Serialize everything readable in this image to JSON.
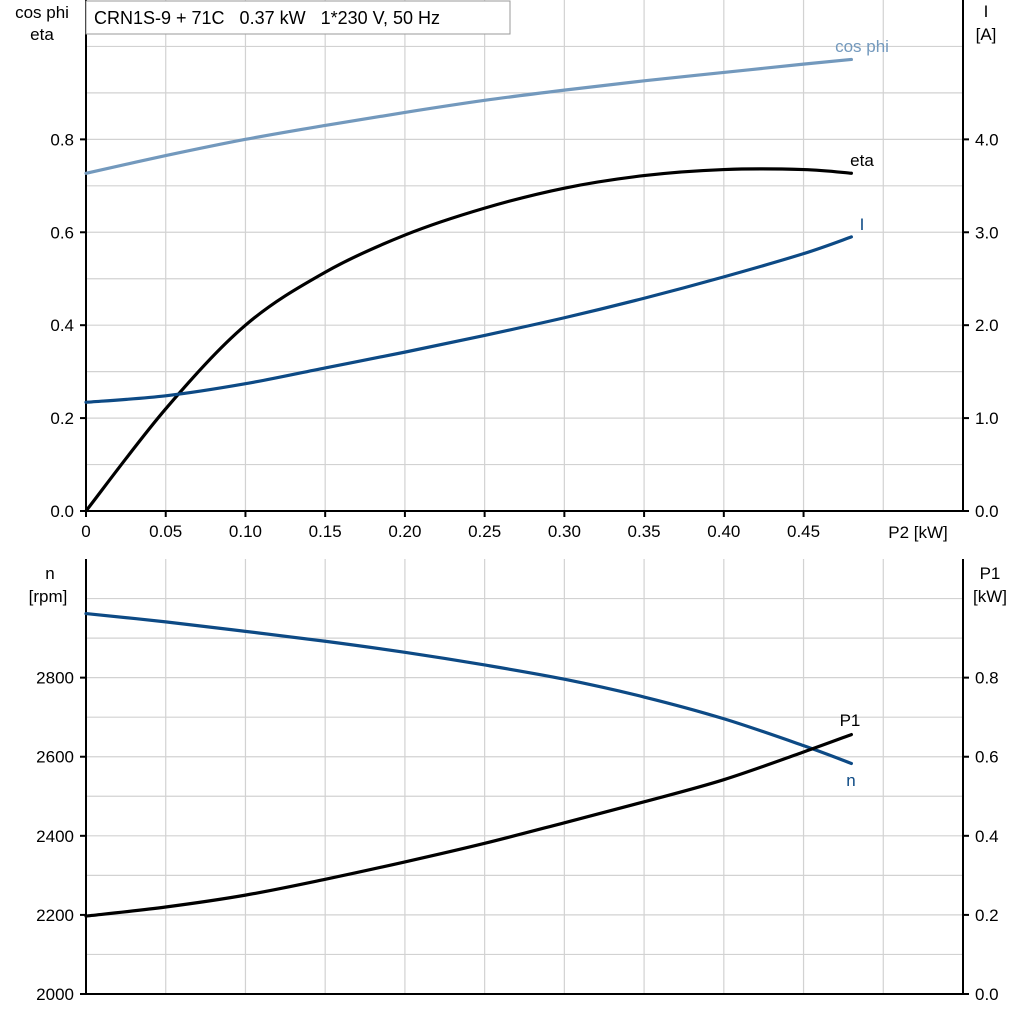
{
  "chart_data": [
    {
      "type": "line",
      "title": "CRN1S-9 + 71C   0.37 kW   1*230 V, 50 Hz",
      "xlabel": "P2 [kW]",
      "ylabel_left": [
        "cos phi",
        "eta"
      ],
      "ylabel_right": [
        "I",
        "[A]"
      ],
      "xlim": [
        0,
        0.55
      ],
      "ylim_left": [
        0,
        1.1
      ],
      "ylim_right": [
        0,
        5.5
      ],
      "x_ticks": [
        "0",
        "0.05",
        "0.10",
        "0.15",
        "0.20",
        "0.25",
        "0.30",
        "0.35",
        "0.40",
        "0.45"
      ],
      "y_left_ticks": [
        "0.0",
        "0.2",
        "0.4",
        "0.6",
        "0.8"
      ],
      "y_right_ticks": [
        "0.0",
        "1.0",
        "2.0",
        "3.0",
        "4.0"
      ],
      "grid": true,
      "x": [
        0,
        0.05,
        0.1,
        0.15,
        0.2,
        0.25,
        0.3,
        0.35,
        0.4,
        0.45,
        0.48
      ],
      "series": [
        {
          "name": "cos phi",
          "axis": "left",
          "color": "#7399bd",
          "values": [
            0.727,
            0.765,
            0.8,
            0.83,
            0.858,
            0.884,
            0.906,
            0.926,
            0.944,
            0.962,
            0.972
          ]
        },
        {
          "name": "eta",
          "axis": "left",
          "color": "#000000",
          "values": [
            0.0,
            0.22,
            0.4,
            0.514,
            0.594,
            0.652,
            0.695,
            0.722,
            0.735,
            0.735,
            0.727
          ]
        },
        {
          "name": "I",
          "axis": "right",
          "color": "#0d4a85",
          "values": [
            1.17,
            1.24,
            1.37,
            1.54,
            1.71,
            1.89,
            2.08,
            2.29,
            2.52,
            2.77,
            2.95
          ]
        }
      ]
    },
    {
      "type": "line",
      "ylabel_left": [
        "n",
        "[rpm]"
      ],
      "ylabel_right": [
        "P1",
        "[kW]"
      ],
      "xlim": [
        0,
        0.55
      ],
      "ylim_left": [
        2000,
        3100
      ],
      "ylim_right": [
        0,
        1.1
      ],
      "y_left_ticks": [
        "2000",
        "2200",
        "2400",
        "2600",
        "2800"
      ],
      "y_right_ticks": [
        "0.0",
        "0.2",
        "0.4",
        "0.6",
        "0.8"
      ],
      "grid": true,
      "x": [
        0,
        0.05,
        0.1,
        0.15,
        0.2,
        0.25,
        0.3,
        0.35,
        0.4,
        0.45,
        0.48
      ],
      "series": [
        {
          "name": "n",
          "axis": "left",
          "color": "#0d4a85",
          "values": [
            2962,
            2941,
            2917,
            2892,
            2864,
            2832,
            2796,
            2751,
            2696,
            2628,
            2583
          ]
        },
        {
          "name": "P1",
          "axis": "right",
          "color": "#000000",
          "values": [
            0.197,
            0.22,
            0.25,
            0.29,
            0.334,
            0.381,
            0.433,
            0.486,
            0.542,
            0.612,
            0.656
          ]
        }
      ]
    }
  ]
}
